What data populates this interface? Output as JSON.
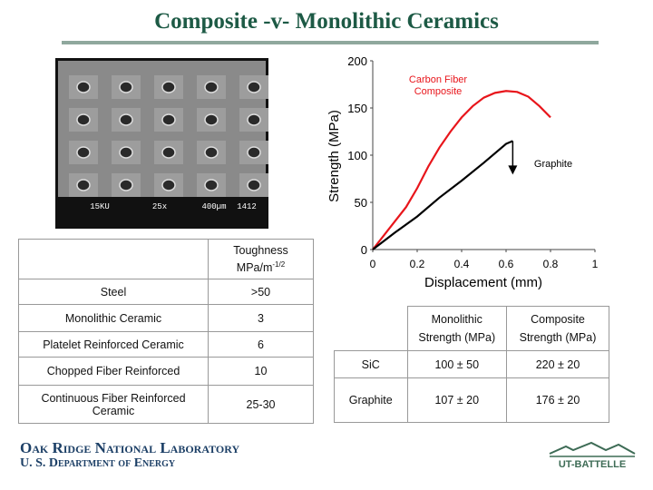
{
  "title": "Composite -v- Monolithic Ceramics",
  "image": {
    "scale_bar": [
      "15KU",
      "25x",
      "400µm",
      "1412"
    ]
  },
  "chart_data": {
    "type": "line",
    "x_label": "Displacement (mm)",
    "y_label": "Strength (MPa)",
    "xlim": [
      0,
      1
    ],
    "ylim": [
      0,
      200
    ],
    "xticks": [
      0,
      0.2,
      0.4,
      0.6,
      0.8,
      1
    ],
    "yticks": [
      0,
      50,
      100,
      150,
      200
    ],
    "series": [
      {
        "name": "Carbon Fiber Composite",
        "color": "#e8151b",
        "x": [
          0,
          0.05,
          0.1,
          0.15,
          0.2,
          0.25,
          0.3,
          0.35,
          0.4,
          0.45,
          0.5,
          0.55,
          0.6,
          0.65,
          0.7,
          0.75,
          0.8
        ],
        "values": [
          0,
          15,
          30,
          45,
          65,
          88,
          108,
          125,
          140,
          152,
          161,
          166,
          168,
          167,
          162,
          152,
          140
        ]
      },
      {
        "name": "Graphite",
        "color": "#000000",
        "x": [
          0,
          0.1,
          0.2,
          0.3,
          0.4,
          0.5,
          0.6,
          0.63
        ],
        "values": [
          0,
          18,
          35,
          55,
          73,
          92,
          112,
          115
        ]
      }
    ]
  },
  "toughness_table": {
    "column_header": "Toughness",
    "column_unit": "MPa/m",
    "column_unit_exponent": "-1/2",
    "rows": [
      [
        "Steel",
        ">50"
      ],
      [
        "Monolithic Ceramic",
        "3"
      ],
      [
        "Platelet Reinforced Ceramic",
        "6"
      ],
      [
        "Chopped Fiber Reinforced",
        "10"
      ],
      [
        "Continuous Fiber Reinforced Ceramic",
        "25-30"
      ]
    ]
  },
  "strength_table": {
    "columns": [
      "Monolithic Strength (MPa)",
      "Composite Strength (MPa)"
    ],
    "rows": [
      [
        "SiC",
        "100 ± 50",
        "220 ± 20"
      ],
      [
        "Graphite",
        "107 ± 20",
        "176 ± 20"
      ]
    ]
  },
  "footer": {
    "lab": "Oak Ridge National Laboratory",
    "department": "U. S. Department of Energy",
    "logo": "UT-BATTELLE"
  }
}
